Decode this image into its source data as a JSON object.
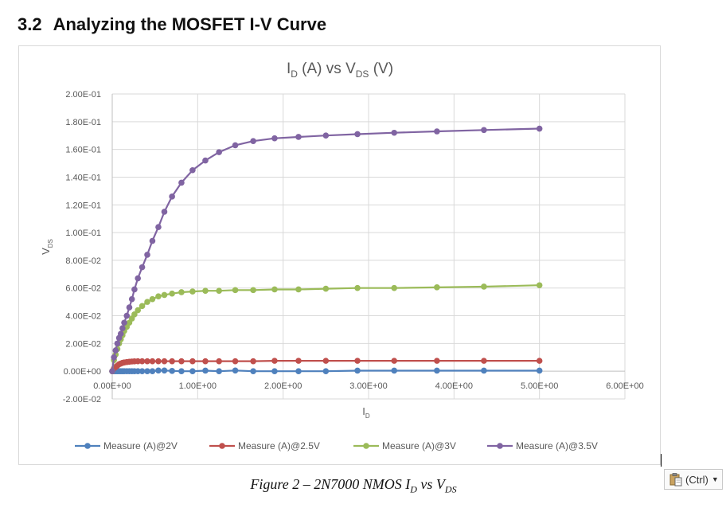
{
  "heading": {
    "number": "3.2",
    "title": "Analyzing the MOSFET I-V Curve"
  },
  "caption": {
    "prefix": "Figure 2 – 2N7000 NMOS I",
    "sub1": "D",
    "mid": " vs V",
    "sub2": "DS"
  },
  "paste_options": {
    "label": "(Ctrl)",
    "icon": "clipboard-icon"
  },
  "chart_data": {
    "type": "scatter",
    "title": {
      "main1": "I",
      "sub1": "D",
      "main2": " (A) vs V",
      "sub2": "DS",
      "main3": " (V)"
    },
    "xlabel": {
      "main": "I",
      "sub": "D"
    },
    "ylabel": {
      "main": "V",
      "sub": "DS"
    },
    "xlim": [
      0,
      6
    ],
    "ylim": [
      -0.02,
      0.2
    ],
    "x_ticks": [
      0,
      1,
      2,
      3,
      4,
      5,
      6
    ],
    "x_tick_labels": [
      "0.00E+00",
      "1.00E+00",
      "2.00E+00",
      "3.00E+00",
      "4.00E+00",
      "5.00E+00",
      "6.00E+00"
    ],
    "y_ticks": [
      -0.02,
      0,
      0.02,
      0.04,
      0.06,
      0.08,
      0.1,
      0.12,
      0.14,
      0.16,
      0.18,
      0.2
    ],
    "y_tick_labels": [
      "-2.00E-02",
      "0.00E+00",
      "2.00E-02",
      "4.00E-02",
      "6.00E-02",
      "8.00E-02",
      "1.00E-01",
      "1.20E-01",
      "1.40E-01",
      "1.60E-01",
      "1.80E-01",
      "2.00E-01"
    ],
    "grid": true,
    "legend_position": "bottom",
    "x": [
      0,
      0.02,
      0.04,
      0.06,
      0.08,
      0.1,
      0.12,
      0.14,
      0.17,
      0.2,
      0.23,
      0.26,
      0.3,
      0.35,
      0.41,
      0.47,
      0.54,
      0.61,
      0.7,
      0.81,
      0.94,
      1.09,
      1.25,
      1.44,
      1.65,
      1.9,
      2.18,
      2.5,
      2.87,
      3.3,
      3.8,
      4.35,
      5.0
    ],
    "series": [
      {
        "name": "Measure (A)@2V",
        "color": "#4f81bd",
        "values": [
          0,
          0,
          0,
          0,
          0,
          0,
          0,
          0,
          0,
          0,
          0,
          0,
          0,
          0,
          0,
          0,
          0.0005,
          0.0005,
          0.0002,
          0,
          0,
          0.0004,
          0,
          0.0005,
          0,
          0,
          0,
          0,
          0.0004,
          0.0004,
          0.0004,
          0.0004,
          0.0004
        ]
      },
      {
        "name": "Measure (A)@2.5V",
        "color": "#c0504d",
        "values": [
          0,
          0.002,
          0.003,
          0.004,
          0.005,
          0.0055,
          0.006,
          0.0063,
          0.0066,
          0.0068,
          0.007,
          0.0071,
          0.0072,
          0.0072,
          0.0072,
          0.0072,
          0.0072,
          0.0072,
          0.0072,
          0.0072,
          0.0072,
          0.0072,
          0.0072,
          0.0072,
          0.0072,
          0.0075,
          0.0075,
          0.0075,
          0.0075,
          0.0075,
          0.0075,
          0.0075,
          0.0075
        ]
      },
      {
        "name": "Measure (A)@3V",
        "color": "#9bbb59",
        "values": [
          0,
          0.008,
          0.012,
          0.016,
          0.02,
          0.023,
          0.026,
          0.029,
          0.032,
          0.035,
          0.038,
          0.041,
          0.044,
          0.047,
          0.05,
          0.052,
          0.054,
          0.055,
          0.056,
          0.057,
          0.0575,
          0.058,
          0.058,
          0.0585,
          0.0585,
          0.059,
          0.059,
          0.0595,
          0.06,
          0.06,
          0.0605,
          0.061,
          0.062
        ]
      },
      {
        "name": "Measure (A)@3.5V",
        "color": "#8064a2",
        "values": [
          0,
          0.01,
          0.015,
          0.02,
          0.024,
          0.027,
          0.031,
          0.035,
          0.04,
          0.046,
          0.052,
          0.059,
          0.067,
          0.075,
          0.084,
          0.094,
          0.104,
          0.115,
          0.126,
          0.136,
          0.145,
          0.152,
          0.158,
          0.163,
          0.166,
          0.168,
          0.169,
          0.17,
          0.171,
          0.172,
          0.173,
          0.174,
          0.175
        ]
      }
    ]
  }
}
